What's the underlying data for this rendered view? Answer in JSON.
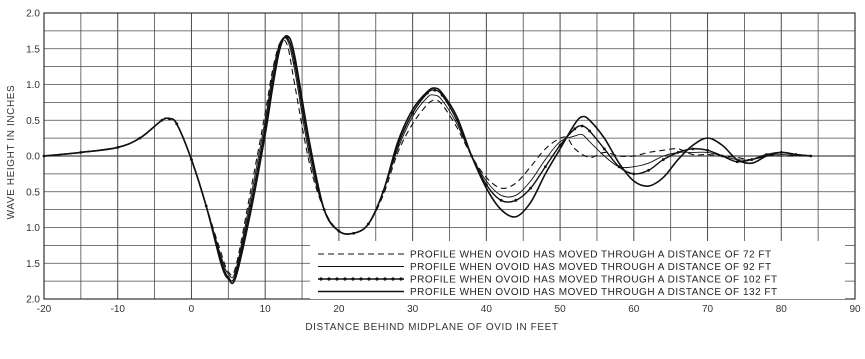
{
  "chart_data": {
    "type": "line",
    "xlabel": "DISTANCE BEHIND MIDPLANE OF OVID IN FEET",
    "ylabel": "WAVE HEIGHT IN INCHES",
    "xlim": [
      -20,
      90
    ],
    "ylim": [
      -2.0,
      2.0
    ],
    "x_ticks": [
      "-20",
      "-10",
      "0",
      "10",
      "20",
      "30",
      "40",
      "50",
      "60",
      "70",
      "80",
      "90"
    ],
    "y_ticks": [
      {
        "value": 2.0,
        "label": "2.0"
      },
      {
        "value": 1.5,
        "label": "1.5"
      },
      {
        "value": 1.0,
        "label": "1.0"
      },
      {
        "value": 0.5,
        "label": "0.5"
      },
      {
        "value": 0.0,
        "label": "0.0"
      },
      {
        "value": -0.5,
        "label": "0.5"
      },
      {
        "value": -1.0,
        "label": "1.0"
      },
      {
        "value": -1.5,
        "label": "1.5"
      },
      {
        "value": -2.0,
        "label": "2.0"
      }
    ],
    "grid": true,
    "legend_position": "bottom-right",
    "series": [
      {
        "name": "PROFILE WHEN OVOID HAS MOVED THROUGH A DISTANCE OF 72 FT",
        "style": "dashed",
        "points": [
          [
            -20,
            0
          ],
          [
            -15,
            0.05
          ],
          [
            -10,
            0.12
          ],
          [
            -7,
            0.25
          ],
          [
            -4,
            0.5
          ],
          [
            -3,
            0.52
          ],
          [
            -2,
            0.45
          ],
          [
            0,
            -0.05
          ],
          [
            2,
            -0.7
          ],
          [
            4,
            -1.35
          ],
          [
            5,
            -1.62
          ],
          [
            6,
            -1.55
          ],
          [
            8,
            -0.5
          ],
          [
            10,
            0.6
          ],
          [
            11,
            1.2
          ],
          [
            12,
            1.58
          ],
          [
            13,
            1.55
          ],
          [
            14,
            1.0
          ],
          [
            16,
            -0.1
          ],
          [
            18,
            -0.75
          ],
          [
            20,
            -1.05
          ],
          [
            22,
            -1.08
          ],
          [
            24,
            -0.95
          ],
          [
            26,
            -0.55
          ],
          [
            28,
            0.05
          ],
          [
            30,
            0.45
          ],
          [
            32,
            0.72
          ],
          [
            33,
            0.78
          ],
          [
            34,
            0.72
          ],
          [
            36,
            0.4
          ],
          [
            38,
            0.0
          ],
          [
            40,
            -0.3
          ],
          [
            42,
            -0.45
          ],
          [
            44,
            -0.38
          ],
          [
            46,
            -0.15
          ],
          [
            48,
            0.1
          ],
          [
            50,
            0.25
          ],
          [
            51,
            0.25
          ],
          [
            52,
            0.1
          ],
          [
            54,
            -0.02
          ],
          [
            56,
            0.05
          ],
          [
            58,
            0.0
          ],
          [
            60,
            0.0
          ],
          [
            62,
            0.05
          ],
          [
            64,
            0.08
          ],
          [
            66,
            0.1
          ],
          [
            68,
            0.02
          ],
          [
            70,
            0.02
          ],
          [
            72,
            0.0
          ],
          [
            74,
            -0.02
          ],
          [
            76,
            -0.05
          ],
          [
            78,
            0.0
          ],
          [
            80,
            0.0
          ],
          [
            82,
            0.0
          ]
        ]
      },
      {
        "name": "PROFILE WHEN OVOID HAS MOVED THROUGH A DISTANCE OF 92 FT",
        "style": "thin",
        "points": [
          [
            -20,
            0
          ],
          [
            -15,
            0.05
          ],
          [
            -10,
            0.12
          ],
          [
            -7,
            0.25
          ],
          [
            -4,
            0.5
          ],
          [
            -3,
            0.52
          ],
          [
            -2,
            0.45
          ],
          [
            0,
            -0.05
          ],
          [
            2,
            -0.7
          ],
          [
            4,
            -1.4
          ],
          [
            5,
            -1.65
          ],
          [
            6,
            -1.6
          ],
          [
            8,
            -0.6
          ],
          [
            10,
            0.5
          ],
          [
            11,
            1.15
          ],
          [
            12,
            1.58
          ],
          [
            13,
            1.62
          ],
          [
            14,
            1.2
          ],
          [
            16,
            0.0
          ],
          [
            18,
            -0.75
          ],
          [
            20,
            -1.05
          ],
          [
            22,
            -1.08
          ],
          [
            24,
            -0.95
          ],
          [
            26,
            -0.5
          ],
          [
            28,
            0.1
          ],
          [
            30,
            0.55
          ],
          [
            32,
            0.82
          ],
          [
            33,
            0.85
          ],
          [
            34,
            0.78
          ],
          [
            36,
            0.45
          ],
          [
            38,
            0.0
          ],
          [
            40,
            -0.35
          ],
          [
            42,
            -0.55
          ],
          [
            44,
            -0.55
          ],
          [
            46,
            -0.35
          ],
          [
            48,
            -0.05
          ],
          [
            50,
            0.2
          ],
          [
            52,
            0.28
          ],
          [
            53,
            0.3
          ],
          [
            54,
            0.2
          ],
          [
            56,
            0.0
          ],
          [
            58,
            -0.15
          ],
          [
            60,
            -0.15
          ],
          [
            62,
            -0.1
          ],
          [
            64,
            0.0
          ],
          [
            66,
            0.05
          ],
          [
            68,
            0.05
          ],
          [
            70,
            0.05
          ],
          [
            72,
            0.0
          ],
          [
            74,
            -0.05
          ],
          [
            76,
            -0.05
          ],
          [
            78,
            0.0
          ],
          [
            80,
            0.02
          ],
          [
            83,
            0.0
          ]
        ]
      },
      {
        "name": "PROFILE WHEN OVOID HAS MOVED THROUGH A DISTANCE OF 102 FT",
        "style": "dotted-line",
        "points": [
          [
            -20,
            0
          ],
          [
            -15,
            0.05
          ],
          [
            -10,
            0.12
          ],
          [
            -7,
            0.25
          ],
          [
            -4,
            0.5
          ],
          [
            -3,
            0.52
          ],
          [
            -2,
            0.45
          ],
          [
            0,
            -0.05
          ],
          [
            2,
            -0.7
          ],
          [
            4,
            -1.45
          ],
          [
            5,
            -1.7
          ],
          [
            6,
            -1.65
          ],
          [
            8,
            -0.7
          ],
          [
            10,
            0.4
          ],
          [
            11,
            1.05
          ],
          [
            12,
            1.55
          ],
          [
            13,
            1.65
          ],
          [
            14,
            1.3
          ],
          [
            16,
            0.1
          ],
          [
            18,
            -0.75
          ],
          [
            20,
            -1.05
          ],
          [
            22,
            -1.08
          ],
          [
            24,
            -0.95
          ],
          [
            26,
            -0.5
          ],
          [
            28,
            0.15
          ],
          [
            30,
            0.6
          ],
          [
            32,
            0.88
          ],
          [
            33,
            0.92
          ],
          [
            34,
            0.85
          ],
          [
            36,
            0.5
          ],
          [
            38,
            0.0
          ],
          [
            40,
            -0.4
          ],
          [
            42,
            -0.62
          ],
          [
            44,
            -0.62
          ],
          [
            46,
            -0.45
          ],
          [
            48,
            -0.15
          ],
          [
            50,
            0.15
          ],
          [
            52,
            0.38
          ],
          [
            53,
            0.42
          ],
          [
            54,
            0.35
          ],
          [
            56,
            0.1
          ],
          [
            58,
            -0.15
          ],
          [
            60,
            -0.25
          ],
          [
            62,
            -0.2
          ],
          [
            64,
            -0.05
          ],
          [
            66,
            0.05
          ],
          [
            68,
            0.1
          ],
          [
            70,
            0.08
          ],
          [
            72,
            0.0
          ],
          [
            74,
            -0.08
          ],
          [
            76,
            -0.05
          ],
          [
            78,
            0.02
          ],
          [
            80,
            0.05
          ],
          [
            82,
            0.02
          ],
          [
            84,
            0.0
          ]
        ]
      },
      {
        "name": "PROFILE WHEN OVOID HAS MOVED THROUGH A DISTANCE OF 132 FT",
        "style": "solid-thick",
        "points": [
          [
            -20,
            0
          ],
          [
            -15,
            0.05
          ],
          [
            -10,
            0.12
          ],
          [
            -7,
            0.25
          ],
          [
            -4,
            0.5
          ],
          [
            -3,
            0.52
          ],
          [
            -2,
            0.45
          ],
          [
            0,
            -0.05
          ],
          [
            2,
            -0.7
          ],
          [
            4,
            -1.5
          ],
          [
            5,
            -1.72
          ],
          [
            6,
            -1.7
          ],
          [
            8,
            -0.8
          ],
          [
            10,
            0.3
          ],
          [
            11,
            0.95
          ],
          [
            12,
            1.5
          ],
          [
            13,
            1.68
          ],
          [
            14,
            1.4
          ],
          [
            16,
            0.2
          ],
          [
            18,
            -0.75
          ],
          [
            20,
            -1.05
          ],
          [
            22,
            -1.08
          ],
          [
            24,
            -0.95
          ],
          [
            26,
            -0.5
          ],
          [
            28,
            0.2
          ],
          [
            30,
            0.65
          ],
          [
            32,
            0.9
          ],
          [
            33,
            0.95
          ],
          [
            34,
            0.88
          ],
          [
            36,
            0.55
          ],
          [
            38,
            0.0
          ],
          [
            40,
            -0.45
          ],
          [
            42,
            -0.75
          ],
          [
            44,
            -0.85
          ],
          [
            46,
            -0.65
          ],
          [
            48,
            -0.25
          ],
          [
            50,
            0.1
          ],
          [
            52,
            0.45
          ],
          [
            53,
            0.55
          ],
          [
            54,
            0.5
          ],
          [
            56,
            0.25
          ],
          [
            58,
            -0.1
          ],
          [
            60,
            -0.35
          ],
          [
            62,
            -0.42
          ],
          [
            64,
            -0.3
          ],
          [
            66,
            -0.05
          ],
          [
            68,
            0.15
          ],
          [
            70,
            0.25
          ],
          [
            72,
            0.15
          ],
          [
            74,
            -0.05
          ],
          [
            76,
            -0.1
          ],
          [
            78,
            0.0
          ],
          [
            80,
            0.05
          ],
          [
            82,
            0.02
          ],
          [
            84,
            0.0
          ]
        ]
      }
    ]
  }
}
